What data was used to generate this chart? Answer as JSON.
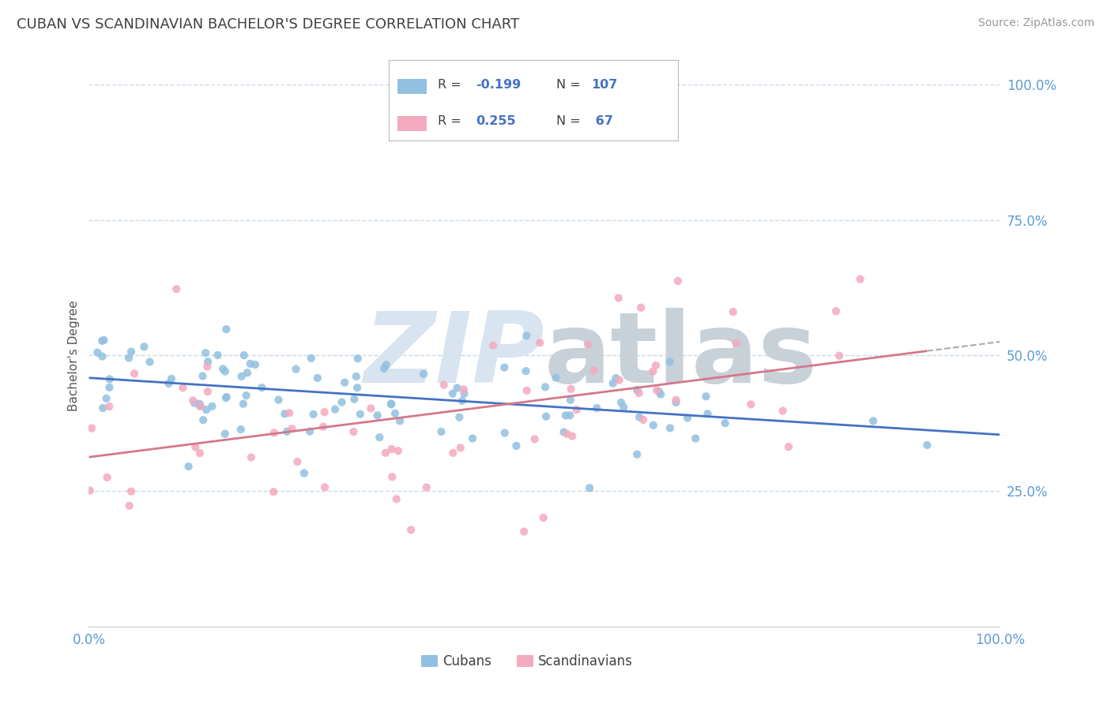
{
  "title": "CUBAN VS SCANDINAVIAN BACHELOR'S DEGREE CORRELATION CHART",
  "source": "Source: ZipAtlas.com",
  "ylabel": "Bachelor's Degree",
  "legend_cubans": "Cubans",
  "legend_scandinavians": "Scandinavians",
  "r_cubans": "-0.199",
  "n_cubans": "107",
  "r_scandinavians": "0.255",
  "n_scandinavians": "67",
  "blue_color": "#92C0E0",
  "pink_color": "#F4AABE",
  "blue_line_color": "#4472C4",
  "pink_line_color": "#D4788A",
  "title_color": "#404040",
  "source_color": "#999999",
  "legend_r_color": "#404040",
  "legend_n_color": "#4472C4",
  "tick_color": "#5B9BD5",
  "watermark_color": "#D8E4F0",
  "background_color": "#FFFFFF",
  "grid_color": "#C8D8E8",
  "bottom_label_color": "#404040"
}
